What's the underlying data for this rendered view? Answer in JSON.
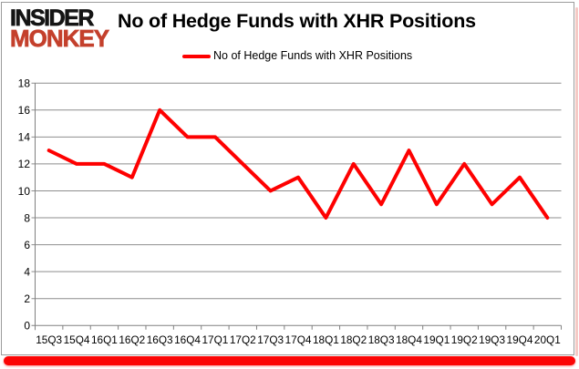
{
  "logo": {
    "line1": "INSIDER",
    "line2": "MONKEY",
    "line1_color": "#151515",
    "line2_color": "#c4402c"
  },
  "chart_data": {
    "type": "line",
    "title": "No of Hedge Funds with XHR Positions",
    "legend_label": "No of Hedge Funds with XHR Positions",
    "legend_position": "top-center",
    "categories": [
      "15Q3",
      "15Q4",
      "16Q1",
      "16Q2",
      "16Q3",
      "16Q4",
      "17Q1",
      "17Q2",
      "17Q3",
      "17Q4",
      "18Q1",
      "18Q2",
      "18Q3",
      "18Q4",
      "19Q1",
      "19Q2",
      "19Q3",
      "19Q4",
      "20Q1"
    ],
    "series": [
      {
        "name": "No of Hedge Funds with XHR Positions",
        "color": "#fe0000",
        "values": [
          13,
          12,
          12,
          11,
          16,
          14,
          14,
          12,
          10,
          11,
          8,
          12,
          9,
          13,
          9,
          12,
          9,
          11,
          8
        ]
      }
    ],
    "ylim": [
      0,
      18
    ],
    "ytick_step": 2,
    "grid": true,
    "xlabel": "",
    "ylabel": ""
  },
  "colors": {
    "grid": "#8e8e8e",
    "axis": "#808080",
    "line": "#fe0000",
    "card_border": "#9b9b9b",
    "bottom_bar": "#fb0505",
    "right_shadow": "#f5cac5"
  }
}
